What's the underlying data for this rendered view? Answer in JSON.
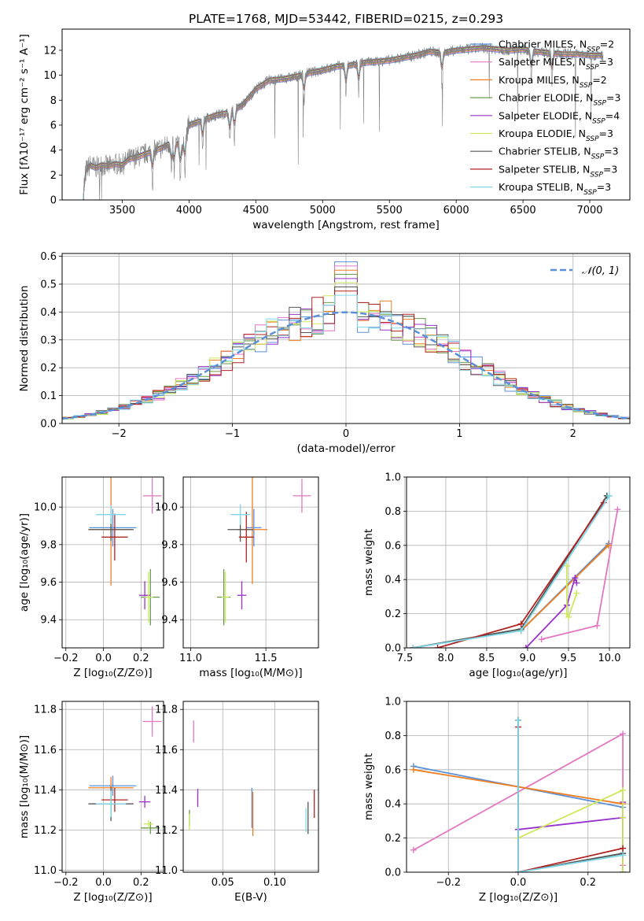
{
  "figure": {
    "title": "PLATE=1768, MJD=53442, FIBERID=0215, z=0.293"
  },
  "models": [
    {
      "name": "Chabrier MILES, N",
      "sub": "SSP",
      "tail": "=2",
      "color": "#5b8fd8"
    },
    {
      "name": "Salpeter MILES, N",
      "sub": "SSP",
      "tail": "=3",
      "color": "#e377c2"
    },
    {
      "name": "Kroupa MILES, N",
      "sub": "SSP",
      "tail": "=2",
      "color": "#ee7f22"
    },
    {
      "name": "Chabrier ELODIE, N",
      "sub": "SSP",
      "tail": "=3",
      "color": "#6a9a4e"
    },
    {
      "name": "Salpeter ELODIE, N",
      "sub": "SSP",
      "tail": "=4",
      "color": "#9932cc"
    },
    {
      "name": "Kroupa ELODIE, N",
      "sub": "SSP",
      "tail": "=3",
      "color": "#cde85c"
    },
    {
      "name": "Chabrier STELIB, N",
      "sub": "SSP",
      "tail": "=3",
      "color": "#555555"
    },
    {
      "name": "Salpeter STELIB, N",
      "sub": "SSP",
      "tail": "=3",
      "color": "#b22222"
    },
    {
      "name": "Kroupa STELIB, N",
      "sub": "SSP",
      "tail": "=3",
      "color": "#7fd8e8"
    }
  ],
  "chart_data": [
    {
      "id": "spectrum",
      "type": "line",
      "xlabel": "wavelength [Angstrom, rest frame]",
      "ylabel": "Flux [fλ10⁻¹⁷ erg cm⁻² s⁻¹ A⁻¹]",
      "xlim": [
        3050,
        7300
      ],
      "ylim": [
        0,
        13.7
      ],
      "xticks": [
        3500,
        4000,
        4500,
        5000,
        5500,
        6000,
        6500,
        7000
      ],
      "yticks": [
        0,
        2,
        4,
        6,
        8,
        10,
        12
      ],
      "data_color": "#808080",
      "x": [
        3200,
        3230,
        3260,
        3300,
        3350,
        3400,
        3450,
        3500,
        3550,
        3600,
        3650,
        3700,
        3750,
        3800,
        3850,
        3900,
        3950,
        4000,
        4100,
        4200,
        4300,
        4400,
        4500,
        4600,
        4700,
        4800,
        4900,
        5000,
        5100,
        5200,
        5300,
        5400,
        5500,
        5600,
        5700,
        5800,
        5900,
        6000,
        6100,
        6200,
        6300,
        6400,
        6500,
        6600,
        6700,
        6800,
        6900,
        7000,
        7100
      ],
      "y": [
        0,
        2.4,
        2.8,
        2.6,
        2.8,
        2.7,
        2.9,
        2.8,
        3.3,
        3.4,
        3.6,
        3.8,
        4.0,
        4.2,
        4.5,
        4.6,
        4.3,
        6.0,
        6.4,
        6.8,
        7.0,
        7.6,
        8.9,
        9.6,
        9.7,
        9.9,
        10.2,
        10.4,
        10.7,
        10.8,
        11.0,
        11.1,
        11.2,
        11.4,
        11.6,
        11.9,
        11.8,
        12.0,
        12.1,
        12.2,
        12.1,
        12.0,
        12.1,
        11.9,
        11.8,
        11.7,
        11.7,
        11.6,
        11.6
      ]
    },
    {
      "id": "residuals",
      "type": "line",
      "xlabel": "(data-model)/error",
      "ylabel": "Normed distribution",
      "xlim": [
        -2.5,
        2.5
      ],
      "ylim": [
        0,
        0.61
      ],
      "xticks": [
        -2,
        -1,
        0,
        1,
        2
      ],
      "yticks": [
        0.0,
        0.1,
        0.2,
        0.3,
        0.4,
        0.5,
        0.6
      ],
      "legend": "𝒩(0, 1)",
      "legend_placement": "upper-right",
      "bin_width": 0.1,
      "bin_start": -2.5,
      "max_bin_value": 0.58
    },
    {
      "id": "age-vs-Z",
      "type": "scatter",
      "xlabel": "Z [log₁₀(Z/Z⊙)]",
      "ylabel": "age  [log₁₀(age/yr)]",
      "xlim": [
        -0.22,
        0.32
      ],
      "ylim": [
        9.25,
        10.16
      ],
      "xticks": [
        -0.2,
        0.0,
        0.2
      ],
      "yticks": [
        9.4,
        9.6,
        9.8,
        10.0
      ],
      "points": [
        {
          "model": 0,
          "x": 0.05,
          "y": 9.89,
          "xerr": 0.25,
          "yerr": 0.2
        },
        {
          "model": 1,
          "x": 0.26,
          "y": 10.06,
          "xerr": 0.1,
          "yerr": 0.19
        },
        {
          "model": 2,
          "x": 0.04,
          "y": 9.88,
          "xerr": 0.24,
          "yerr": 0.6
        },
        {
          "model": 3,
          "x": 0.25,
          "y": 9.52,
          "xerr": 0.1,
          "yerr": 0.3
        },
        {
          "model": 4,
          "x": 0.22,
          "y": 9.53,
          "xerr": 0.06,
          "yerr": 0.15
        },
        {
          "model": 5,
          "x": 0.24,
          "y": 9.52,
          "xerr": 0.05,
          "yerr": 0.27
        },
        {
          "model": 6,
          "x": 0.04,
          "y": 9.88,
          "xerr": 0.24,
          "yerr": 0.12
        },
        {
          "model": 7,
          "x": 0.06,
          "y": 9.84,
          "xerr": 0.14,
          "yerr": 0.25
        },
        {
          "model": 8,
          "x": 0.04,
          "y": 9.96,
          "xerr": 0.16,
          "yerr": 0.1
        }
      ]
    },
    {
      "id": "age-vs-mass",
      "type": "scatter",
      "xlabel": "mass [log₁₀(M/M⊙)]",
      "xlim": [
        10.95,
        11.85
      ],
      "ylim": [
        9.25,
        10.16
      ],
      "xticks": [
        11.0,
        11.5
      ],
      "yticks": [
        9.4,
        9.6,
        9.8,
        10.0
      ],
      "points": [
        {
          "model": 0,
          "x": 11.42,
          "y": 9.89,
          "xerr": 0.1,
          "yerr": 0.2
        },
        {
          "model": 1,
          "x": 11.74,
          "y": 10.06,
          "xerr": 0.12,
          "yerr": 0.18
        },
        {
          "model": 2,
          "x": 11.41,
          "y": 9.88,
          "xerr": 0.2,
          "yerr": 0.58
        },
        {
          "model": 3,
          "x": 11.22,
          "y": 9.52,
          "xerr": 0.09,
          "yerr": 0.3
        },
        {
          "model": 4,
          "x": 11.34,
          "y": 9.53,
          "xerr": 0.06,
          "yerr": 0.15
        },
        {
          "model": 5,
          "x": 11.23,
          "y": 9.52,
          "xerr": 0.05,
          "yerr": 0.27
        },
        {
          "model": 6,
          "x": 11.33,
          "y": 9.88,
          "xerr": 0.17,
          "yerr": 0.13
        },
        {
          "model": 7,
          "x": 11.37,
          "y": 9.84,
          "xerr": 0.1,
          "yerr": 0.27
        },
        {
          "model": 8,
          "x": 11.33,
          "y": 9.96,
          "xerr": 0.13,
          "yerr": 0.11
        }
      ]
    },
    {
      "id": "mass-weight-vs-age",
      "type": "line",
      "xlabel": "age  [log₁₀(age/yr)]",
      "ylabel": "mass weight",
      "xlim": [
        7.52,
        10.25
      ],
      "ylim": [
        0,
        1.0
      ],
      "xticks": [
        7.5,
        8.0,
        8.5,
        9.0,
        9.5,
        10.0
      ],
      "yticks": [
        0.0,
        0.2,
        0.4,
        0.6,
        0.8,
        1.0
      ],
      "series": [
        {
          "model": 0,
          "x": [
            8.92,
            9.99
          ],
          "y": [
            0.1,
            0.61
          ]
        },
        {
          "model": 1,
          "x": [
            9.17,
            9.85,
            10.1
          ],
          "y": [
            0.05,
            0.13,
            0.81
          ]
        },
        {
          "model": 2,
          "x": [
            8.92,
            9.99
          ],
          "y": [
            0.1,
            0.6
          ]
        },
        {
          "model": 3,
          "x": [
            7.6,
            8.92,
            9.97
          ],
          "y": [
            0.0,
            0.11,
            0.89
          ]
        },
        {
          "model": 4,
          "x": [
            8.98,
            9.48,
            9.58,
            9.6
          ],
          "y": [
            0.0,
            0.25,
            0.41,
            0.38
          ]
        },
        {
          "model": 5,
          "x": [
            9.48,
            9.48,
            9.5,
            9.6
          ],
          "y": [
            0.48,
            0.2,
            0.18,
            0.32
          ]
        },
        {
          "model": 6,
          "x": [
            7.6,
            8.92,
            9.97
          ],
          "y": [
            0.0,
            0.11,
            0.89
          ]
        },
        {
          "model": 7,
          "x": [
            7.9,
            8.92,
            9.93
          ],
          "y": [
            0.0,
            0.14,
            0.85
          ]
        },
        {
          "model": 8,
          "x": [
            7.6,
            8.92,
            10.0
          ],
          "y": [
            0.0,
            0.1,
            0.89
          ]
        }
      ]
    },
    {
      "id": "mass-vs-Z",
      "type": "scatter",
      "xlabel": "Z [log₁₀(Z/Z⊙)]",
      "ylabel": "mass [log₁₀(M/M⊙)]",
      "xlim": [
        -0.22,
        0.32
      ],
      "ylim": [
        10.99,
        11.84
      ],
      "xticks": [
        -0.2,
        0.0,
        0.2
      ],
      "yticks": [
        11.0,
        11.2,
        11.4,
        11.6,
        11.8
      ],
      "points": [
        {
          "model": 0,
          "x": 0.05,
          "y": 11.42,
          "xerr": 0.25,
          "yerr": 0.1
        },
        {
          "model": 1,
          "x": 0.26,
          "y": 11.74,
          "xerr": 0.1,
          "yerr": 0.15
        },
        {
          "model": 2,
          "x": 0.04,
          "y": 11.41,
          "xerr": 0.24,
          "yerr": 0.11
        },
        {
          "model": 3,
          "x": 0.25,
          "y": 11.21,
          "xerr": 0.1,
          "yerr": 0.06
        },
        {
          "model": 4,
          "x": 0.22,
          "y": 11.34,
          "xerr": 0.06,
          "yerr": 0.06
        },
        {
          "model": 5,
          "x": 0.24,
          "y": 11.23,
          "xerr": 0.05,
          "yerr": 0.04
        },
        {
          "model": 6,
          "x": 0.04,
          "y": 11.33,
          "xerr": 0.24,
          "yerr": 0.17
        },
        {
          "model": 7,
          "x": 0.06,
          "y": 11.35,
          "xerr": 0.14,
          "yerr": 0.12
        },
        {
          "model": 8,
          "x": 0.04,
          "y": 11.33,
          "xerr": 0.16,
          "yerr": 0.13
        }
      ]
    },
    {
      "id": "mass-vs-ebv",
      "type": "scatter",
      "xlabel": "E(B-V)",
      "xlim": [
        0.012,
        0.142
      ],
      "ylim": [
        10.99,
        11.84
      ],
      "xticks": [
        0.05,
        0.1
      ],
      "yticks": [
        11.0,
        11.2,
        11.4,
        11.6,
        11.8
      ],
      "points": [
        {
          "model": 0,
          "x": 0.078,
          "y": 11.31,
          "yerr": 0.2
        },
        {
          "model": 1,
          "x": 0.022,
          "y": 11.69,
          "yerr": 0.11
        },
        {
          "model": 2,
          "x": 0.079,
          "y": 11.28,
          "yerr": 0.22
        },
        {
          "model": 3,
          "x": 0.018,
          "y": 11.26,
          "yerr": 0.08
        },
        {
          "model": 4,
          "x": 0.026,
          "y": 11.36,
          "yerr": 0.09
        },
        {
          "model": 5,
          "x": 0.018,
          "y": 11.24,
          "yerr": 0.08
        },
        {
          "model": 6,
          "x": 0.132,
          "y": 11.26,
          "yerr": 0.16
        },
        {
          "model": 7,
          "x": 0.138,
          "y": 11.33,
          "yerr": 0.14
        },
        {
          "model": 8,
          "x": 0.13,
          "y": 11.25,
          "yerr": 0.12
        }
      ]
    },
    {
      "id": "mass-weight-vs-Z",
      "type": "line",
      "xlabel": "Z [log₁₀(Z/Z⊙)]",
      "ylabel": "mass weight",
      "xlim": [
        -0.32,
        0.32
      ],
      "ylim": [
        0,
        1.0
      ],
      "xticks": [
        -0.2,
        0.0,
        0.2
      ],
      "yticks": [
        0.0,
        0.2,
        0.4,
        0.6,
        0.8,
        1.0
      ],
      "series": [
        {
          "model": 0,
          "x": [
            -0.3,
            0.3
          ],
          "y": [
            0.62,
            0.38
          ]
        },
        {
          "model": 1,
          "x": [
            -0.3,
            0.3,
            0.3,
            0.3
          ],
          "y": [
            0.13,
            0.81,
            0.04,
            0.0
          ]
        },
        {
          "model": 2,
          "x": [
            -0.3,
            0.3
          ],
          "y": [
            0.6,
            0.4
          ]
        },
        {
          "model": 3,
          "x": [
            0.0,
            0.0,
            0.3
          ],
          "y": [
            0.89,
            0.0,
            0.11
          ]
        },
        {
          "model": 4,
          "x": [
            0.0,
            0.3,
            0.3,
            0.3
          ],
          "y": [
            0.25,
            0.32,
            0.41,
            0.0
          ]
        },
        {
          "model": 5,
          "x": [
            0.0,
            0.3,
            0.3,
            0.3
          ],
          "y": [
            0.2,
            0.48,
            0.32,
            0.0
          ]
        },
        {
          "model": 6,
          "x": [
            0.0,
            0.0,
            0.3
          ],
          "y": [
            0.89,
            0.0,
            0.11
          ]
        },
        {
          "model": 7,
          "x": [
            0.0,
            0.0,
            0.3
          ],
          "y": [
            0.85,
            0.0,
            0.14
          ]
        },
        {
          "model": 8,
          "x": [
            0.0,
            0.0,
            0.3
          ],
          "y": [
            0.89,
            0.0,
            0.1
          ]
        }
      ]
    }
  ]
}
